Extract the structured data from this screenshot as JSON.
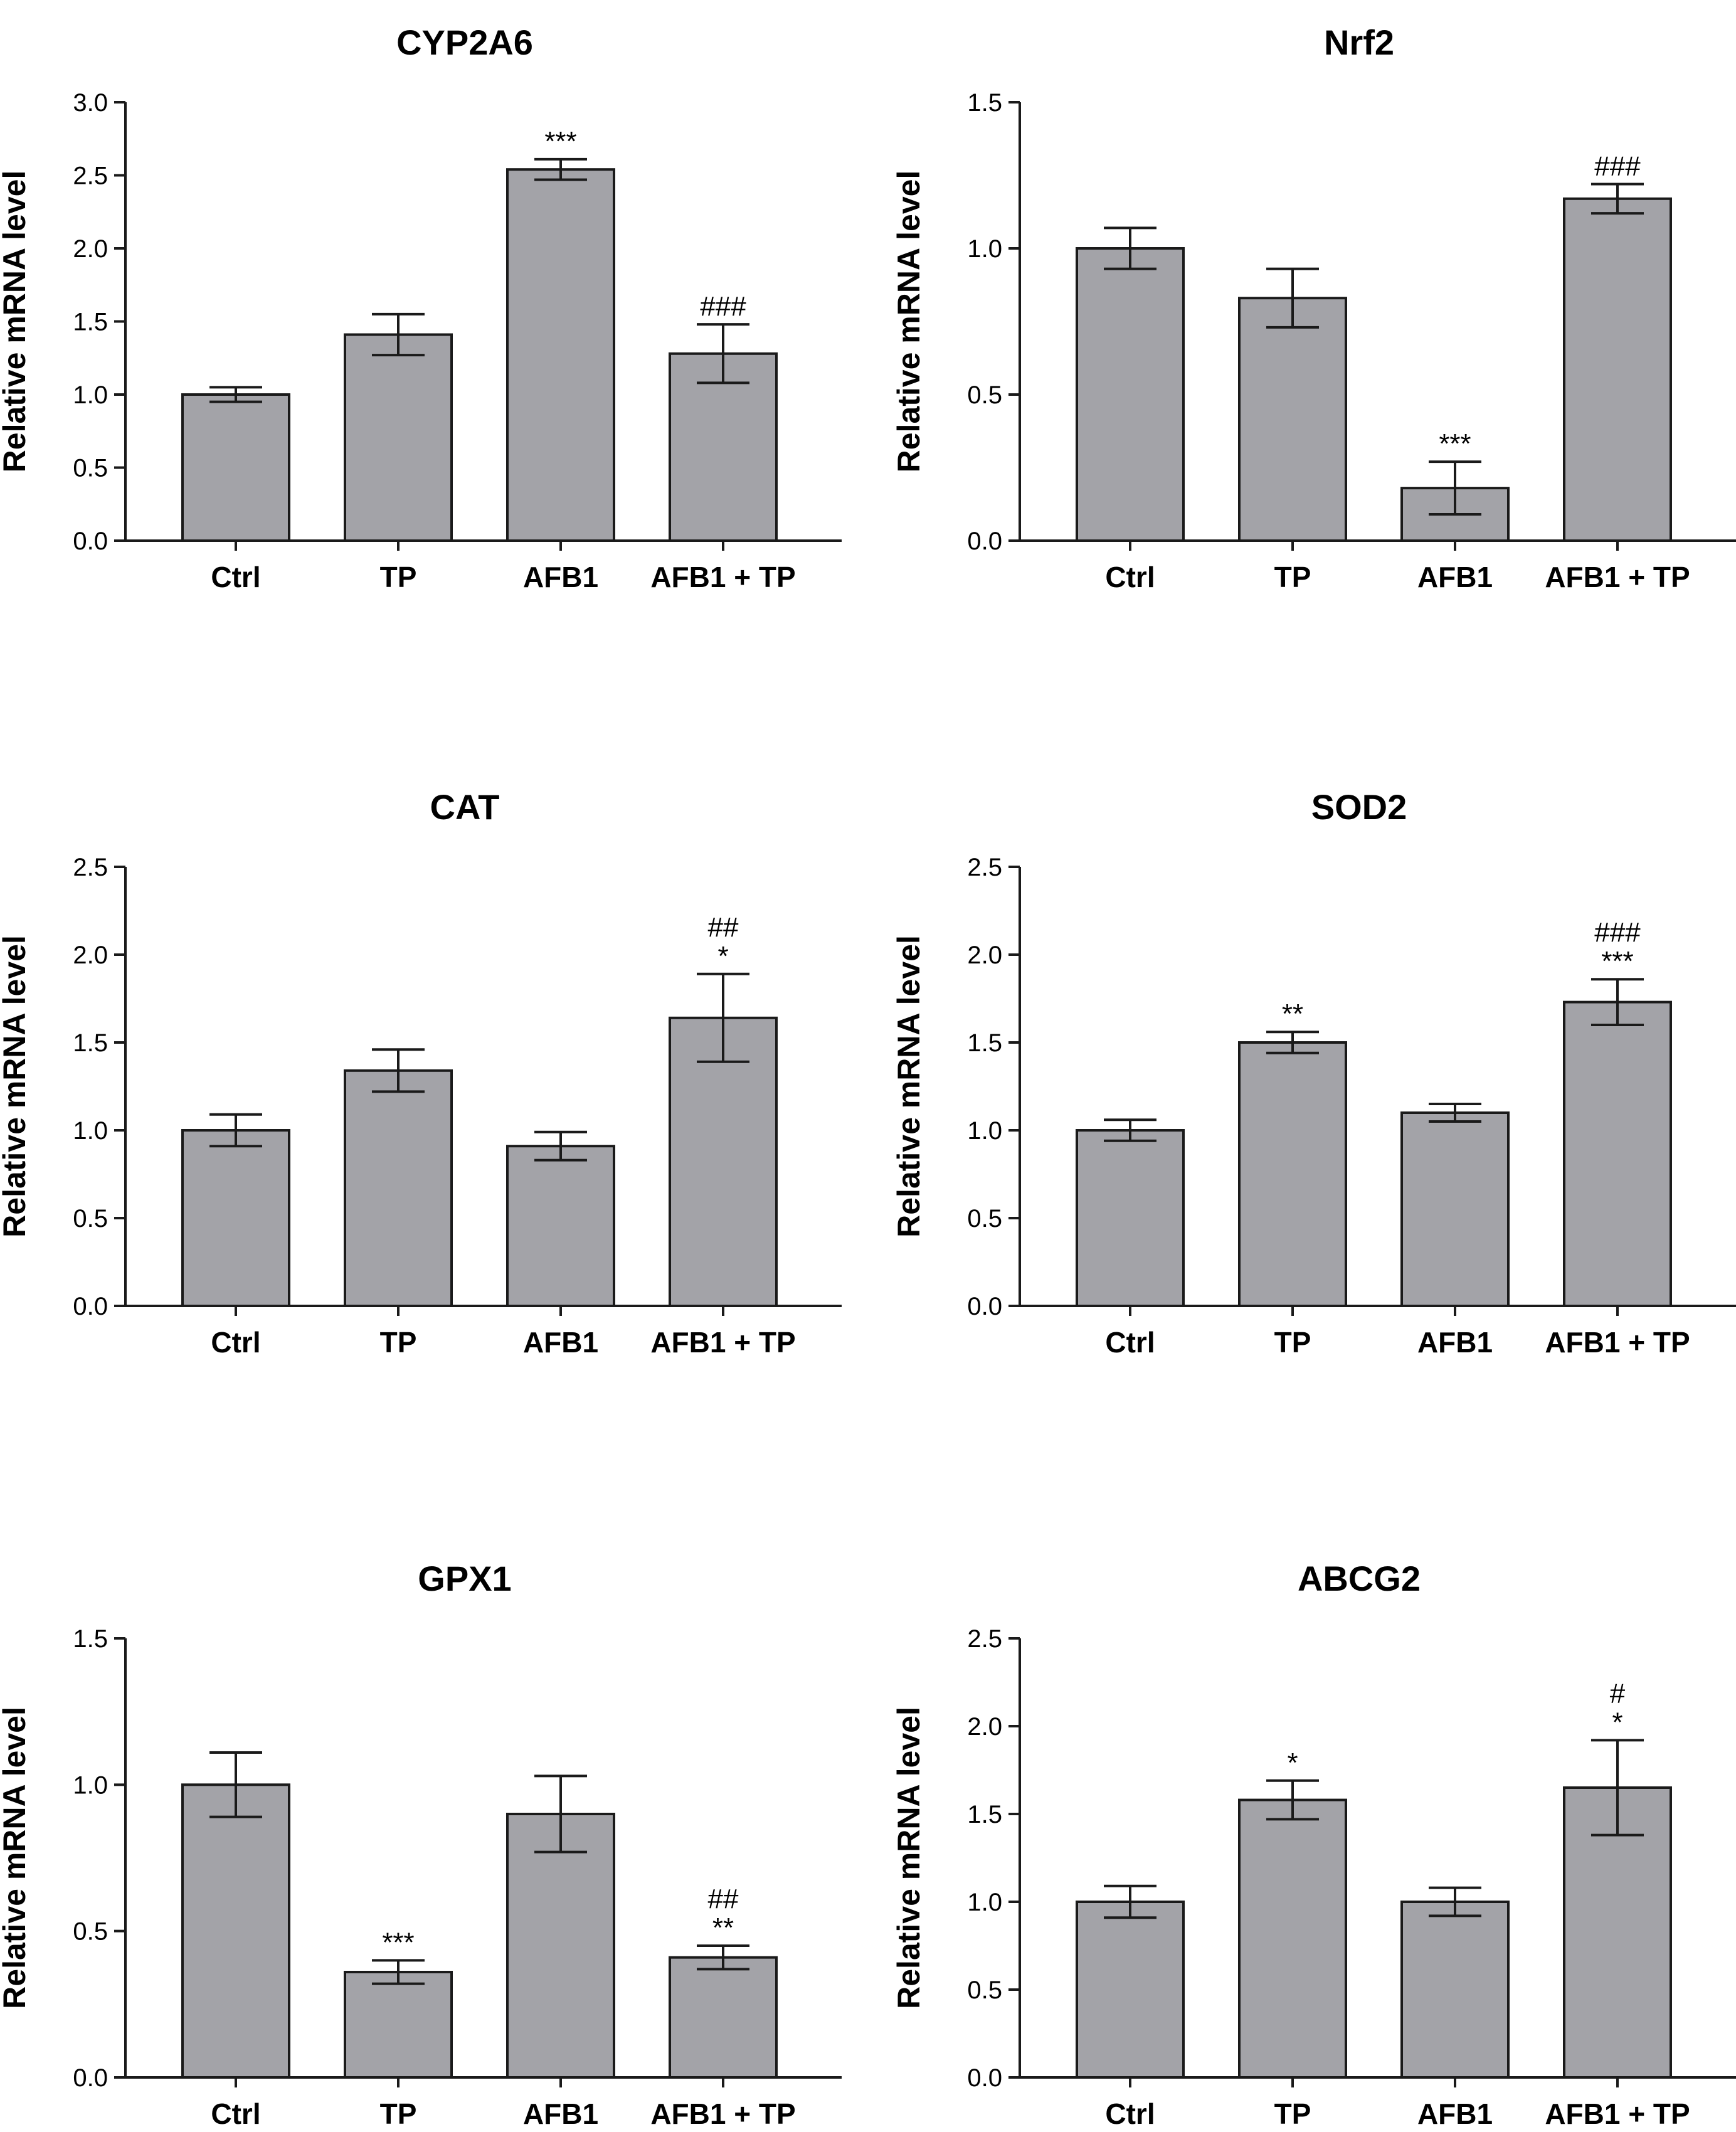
{
  "chart_data": [
    {
      "type": "bar",
      "title": "CYP2A6",
      "ylabel": "Relative mRNA level",
      "categories": [
        "Ctrl",
        "TP",
        "AFB1",
        "AFB1 + TP"
      ],
      "values": [
        1.0,
        1.41,
        2.54,
        1.28
      ],
      "errors": [
        0.05,
        0.14,
        0.07,
        0.2
      ],
      "significance": [
        [],
        [],
        [
          "***"
        ],
        [
          "###"
        ]
      ],
      "ylim": [
        0,
        3.0
      ],
      "yticks": [
        "0.0",
        "0.5",
        "1.0",
        "1.5",
        "2.0",
        "2.5",
        "3.0"
      ]
    },
    {
      "type": "bar",
      "title": "Nrf2",
      "ylabel": "Relative mRNA level",
      "categories": [
        "Ctrl",
        "TP",
        "AFB1",
        "AFB1 + TP"
      ],
      "values": [
        1.0,
        0.83,
        0.18,
        1.17
      ],
      "errors": [
        0.07,
        0.1,
        0.09,
        0.05
      ],
      "significance": [
        [],
        [],
        [
          "***"
        ],
        [
          "###"
        ]
      ],
      "ylim": [
        0,
        1.5
      ],
      "yticks": [
        "0.0",
        "0.5",
        "1.0",
        "1.5"
      ]
    },
    {
      "type": "bar",
      "title": "CAT",
      "ylabel": "Relative mRNA level",
      "categories": [
        "Ctrl",
        "TP",
        "AFB1",
        "AFB1 + TP"
      ],
      "values": [
        1.0,
        1.34,
        0.91,
        1.64
      ],
      "errors": [
        0.09,
        0.12,
        0.08,
        0.25
      ],
      "significance": [
        [],
        [],
        [],
        [
          "##",
          "*"
        ]
      ],
      "ylim": [
        0,
        2.5
      ],
      "yticks": [
        "0.0",
        "0.5",
        "1.0",
        "1.5",
        "2.0",
        "2.5"
      ]
    },
    {
      "type": "bar",
      "title": "SOD2",
      "ylabel": "Relative mRNA level",
      "categories": [
        "Ctrl",
        "TP",
        "AFB1",
        "AFB1 + TP"
      ],
      "values": [
        1.0,
        1.5,
        1.1,
        1.73
      ],
      "errors": [
        0.06,
        0.06,
        0.05,
        0.13
      ],
      "significance": [
        [],
        [
          "**"
        ],
        [],
        [
          "###",
          "***"
        ]
      ],
      "ylim": [
        0,
        2.5
      ],
      "yticks": [
        "0.0",
        "0.5",
        "1.0",
        "1.5",
        "2.0",
        "2.5"
      ]
    },
    {
      "type": "bar",
      "title": "GPX1",
      "ylabel": "Relative mRNA level",
      "categories": [
        "Ctrl",
        "TP",
        "AFB1",
        "AFB1 + TP"
      ],
      "values": [
        1.0,
        0.36,
        0.9,
        0.41
      ],
      "errors": [
        0.11,
        0.04,
        0.13,
        0.04
      ],
      "significance": [
        [],
        [
          "***"
        ],
        [],
        [
          "##",
          "**"
        ]
      ],
      "ylim": [
        0,
        1.5
      ],
      "yticks": [
        "0.0",
        "0.5",
        "1.0",
        "1.5"
      ]
    },
    {
      "type": "bar",
      "title": "ABCG2",
      "ylabel": "Relative mRNA level",
      "categories": [
        "Ctrl",
        "TP",
        "AFB1",
        "AFB1 + TP"
      ],
      "values": [
        1.0,
        1.58,
        1.0,
        1.65
      ],
      "errors": [
        0.09,
        0.11,
        0.08,
        0.27
      ],
      "significance": [
        [],
        [
          "*"
        ],
        [],
        [
          "#",
          "*"
        ]
      ],
      "ylim": [
        0,
        2.5
      ],
      "yticks": [
        "0.0",
        "0.5",
        "1.0",
        "1.5",
        "2.0",
        "2.5"
      ]
    }
  ],
  "colors": {
    "bar_fill": "#a3a3a8",
    "bar_stroke": "#1a1a1a",
    "axis": "#1a1a1a"
  }
}
